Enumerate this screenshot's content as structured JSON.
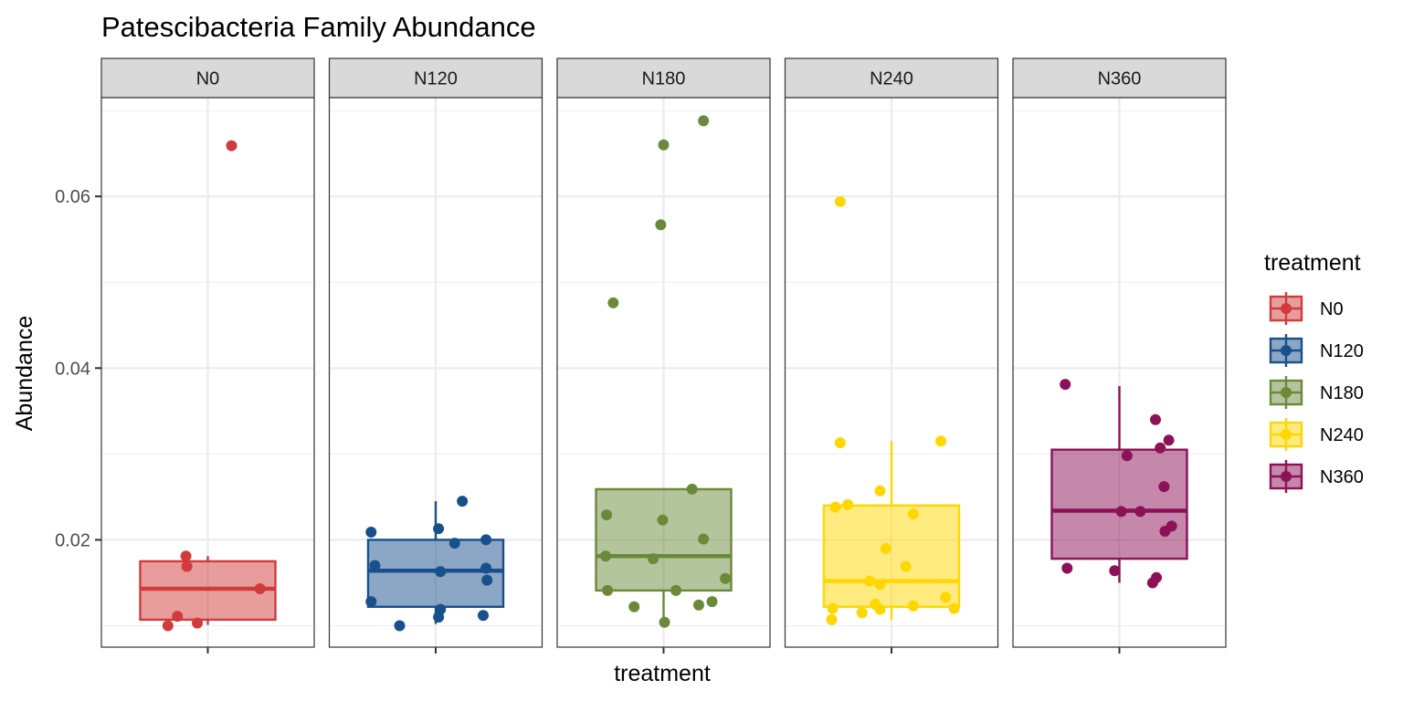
{
  "chart_data": {
    "type": "box",
    "title": "Patescibacteria Family Abundance",
    "xlabel": "treatment",
    "ylabel": "Abundance",
    "ylim": [
      0.0075,
      0.0715
    ],
    "yticks": [
      0.02,
      0.04,
      0.06
    ],
    "ytick_labels": [
      "0.02",
      "0.04",
      "0.06"
    ],
    "grid": true,
    "legend": {
      "title": "treatment",
      "placement": "right",
      "entries": [
        "N0",
        "N120",
        "N180",
        "N240",
        "N360"
      ]
    },
    "facets": [
      "N0",
      "N120",
      "N180",
      "N240",
      "N360"
    ],
    "colors": {
      "N0": "#d13b3b",
      "N120": "#18508c",
      "N180": "#6a8a3a",
      "N240": "#ffd700",
      "N360": "#8c1157"
    },
    "series": [
      {
        "name": "N0",
        "box": {
          "lower_whisker": 0.0101,
          "q1": 0.0107,
          "median": 0.0143,
          "q3": 0.0175,
          "upper_whisker": 0.0181
        },
        "points": [
          {
            "jitter": 0.25,
            "y": 0.0659
          },
          {
            "jitter": -0.23,
            "y": 0.0181
          },
          {
            "jitter": -0.22,
            "y": 0.0169
          },
          {
            "jitter": 0.55,
            "y": 0.0143
          },
          {
            "jitter": -0.32,
            "y": 0.0111
          },
          {
            "jitter": -0.42,
            "y": 0.01
          },
          {
            "jitter": -0.11,
            "y": 0.0103
          }
        ]
      },
      {
        "name": "N120",
        "box": {
          "lower_whisker": 0.0102,
          "q1": 0.0122,
          "median": 0.0164,
          "q3": 0.02,
          "upper_whisker": 0.0245
        },
        "points": [
          {
            "jitter": 0.28,
            "y": 0.0245
          },
          {
            "jitter": 0.03,
            "y": 0.0213
          },
          {
            "jitter": -0.68,
            "y": 0.0209
          },
          {
            "jitter": 0.2,
            "y": 0.0196
          },
          {
            "jitter": 0.53,
            "y": 0.02
          },
          {
            "jitter": -0.64,
            "y": 0.017
          },
          {
            "jitter": 0.53,
            "y": 0.0167
          },
          {
            "jitter": 0.05,
            "y": 0.0163
          },
          {
            "jitter": 0.54,
            "y": 0.0153
          },
          {
            "jitter": -0.68,
            "y": 0.0128
          },
          {
            "jitter": 0.05,
            "y": 0.0119
          },
          {
            "jitter": 0.03,
            "y": 0.011
          },
          {
            "jitter": 0.5,
            "y": 0.0112
          },
          {
            "jitter": -0.38,
            "y": 0.01
          }
        ]
      },
      {
        "name": "N180",
        "box": {
          "lower_whisker": 0.0104,
          "q1": 0.0141,
          "median": 0.0181,
          "q3": 0.0259,
          "upper_whisker": 0.0259
        },
        "points": [
          {
            "jitter": 0.42,
            "y": 0.0688
          },
          {
            "jitter": 0.0,
            "y": 0.066
          },
          {
            "jitter": -0.03,
            "y": 0.0567
          },
          {
            "jitter": -0.53,
            "y": 0.0476
          },
          {
            "jitter": 0.3,
            "y": 0.0259
          },
          {
            "jitter": -0.6,
            "y": 0.0229
          },
          {
            "jitter": -0.01,
            "y": 0.0223
          },
          {
            "jitter": 0.42,
            "y": 0.0201
          },
          {
            "jitter": -0.61,
            "y": 0.0181
          },
          {
            "jitter": -0.11,
            "y": 0.0178
          },
          {
            "jitter": 0.65,
            "y": 0.0155
          },
          {
            "jitter": -0.59,
            "y": 0.0141
          },
          {
            "jitter": 0.13,
            "y": 0.0141
          },
          {
            "jitter": 0.51,
            "y": 0.0128
          },
          {
            "jitter": 0.37,
            "y": 0.0124
          },
          {
            "jitter": -0.31,
            "y": 0.0122
          },
          {
            "jitter": 0.01,
            "y": 0.0104
          }
        ]
      },
      {
        "name": "N240",
        "box": {
          "lower_whisker": 0.0107,
          "q1": 0.0122,
          "median": 0.0152,
          "q3": 0.024,
          "upper_whisker": 0.0315
        },
        "points": [
          {
            "jitter": -0.54,
            "y": 0.0594
          },
          {
            "jitter": -0.54,
            "y": 0.0313
          },
          {
            "jitter": 0.52,
            "y": 0.0315
          },
          {
            "jitter": -0.12,
            "y": 0.0257
          },
          {
            "jitter": -0.46,
            "y": 0.0241
          },
          {
            "jitter": -0.59,
            "y": 0.0238
          },
          {
            "jitter": 0.23,
            "y": 0.023
          },
          {
            "jitter": -0.06,
            "y": 0.019
          },
          {
            "jitter": 0.15,
            "y": 0.0169
          },
          {
            "jitter": -0.23,
            "y": 0.0152
          },
          {
            "jitter": -0.12,
            "y": 0.0148
          },
          {
            "jitter": 0.57,
            "y": 0.0133
          },
          {
            "jitter": -0.17,
            "y": 0.0125
          },
          {
            "jitter": -0.12,
            "y": 0.0119
          },
          {
            "jitter": 0.23,
            "y": 0.0123
          },
          {
            "jitter": 0.66,
            "y": 0.012
          },
          {
            "jitter": -0.62,
            "y": 0.012
          },
          {
            "jitter": -0.31,
            "y": 0.0115
          },
          {
            "jitter": -0.63,
            "y": 0.0107
          }
        ]
      },
      {
        "name": "N360",
        "box": {
          "lower_whisker": 0.015,
          "q1": 0.0178,
          "median": 0.0234,
          "q3": 0.0305,
          "upper_whisker": 0.0379
        },
        "points": [
          {
            "jitter": -0.57,
            "y": 0.0381
          },
          {
            "jitter": 0.38,
            "y": 0.034
          },
          {
            "jitter": 0.52,
            "y": 0.0316
          },
          {
            "jitter": 0.43,
            "y": 0.0307
          },
          {
            "jitter": 0.08,
            "y": 0.0298
          },
          {
            "jitter": 0.47,
            "y": 0.0262
          },
          {
            "jitter": 0.22,
            "y": 0.0233
          },
          {
            "jitter": 0.02,
            "y": 0.0233
          },
          {
            "jitter": 0.55,
            "y": 0.0216
          },
          {
            "jitter": 0.48,
            "y": 0.021
          },
          {
            "jitter": -0.55,
            "y": 0.0167
          },
          {
            "jitter": -0.05,
            "y": 0.0164
          },
          {
            "jitter": 0.39,
            "y": 0.0156
          },
          {
            "jitter": 0.35,
            "y": 0.015
          }
        ]
      }
    ]
  }
}
